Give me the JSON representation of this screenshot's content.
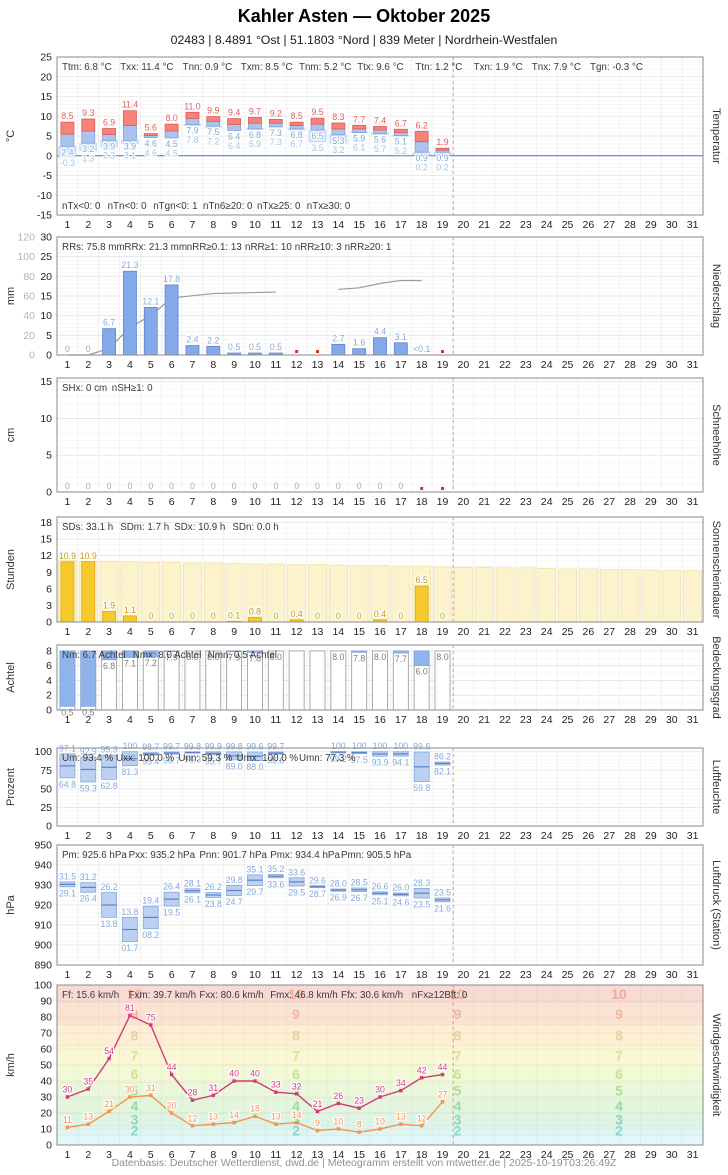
{
  "header": {
    "title": "Kahler Asten  —  Oktober 2025",
    "subtitle": "02483  |  8.4891 °Ost  |  51.1803 °Nord  |  839 Meter  |  Nordrhein-Westfalen"
  },
  "footer": {
    "credit": "Datenbasis: Deutscher Wetterdienst, dwd.de | Meteogramm erstellt von mtwetter.de | 2025-10-19T03:26:49Z"
  },
  "day_labels": [
    "1",
    "2",
    "3",
    "4",
    "5",
    "6",
    "7",
    "8",
    "9",
    "10",
    "11",
    "12",
    "13",
    "14",
    "15",
    "16",
    "17",
    "18",
    "19",
    "20",
    "21",
    "22",
    "23",
    "24",
    "25",
    "26",
    "27",
    "28",
    "29",
    "30",
    "31"
  ],
  "now_line": {
    "after_day": 19
  },
  "colors": {
    "temp_max_bar": "#f5837c",
    "temp_max_border": "#e25a55",
    "temp_label_max": "#e25a55",
    "temp_min_bar": "#a9c4ee",
    "temp_min_border": "#7fa3dc",
    "temp_label_min": "#7da7d8",
    "temp_ground_bar": "#d4e2f6",
    "temp_ground_border": "#c2d6f2",
    "temp_label_ground": "#a4c3e2",
    "zero_line": "#4a72c8",
    "precip_bar": "#84a9ea",
    "precip_border": "#5f83cf",
    "precip_label": "#84a9da",
    "cumulative_line": "#9a9a9a",
    "missing_dot": "#e03020",
    "snow_label": "#aaaaaa",
    "sun_bar": "#f6c92f",
    "sun_border": "#d9a615",
    "sun_label": "#c19718",
    "sun_bg_bar": "#fcf3cd",
    "sun_bg_border": "#f0e2a6",
    "cloud_cap": "#8fb4ec",
    "cloud_cap_border": "#7fa3dc",
    "cloud_bar_border": "#a0a0a0",
    "cloud_label": "#7c7c7c",
    "range_bar": "#bcd0f1",
    "range_border": "#86a8e0",
    "range_mean": "#5b82c8",
    "range_label": "#84a8da",
    "wind_gust": "#d23b7a",
    "wind_mean": "#f5924e",
    "now_line": "#e89090",
    "grid_major": "#e3e3e3",
    "grid_minor": "#f4f4f4",
    "grid_day": "#ececec",
    "panel_border": "#8a8a8a"
  },
  "chart_data": [
    {
      "key": "temperature",
      "type": "bar",
      "unit_left": "°C",
      "label_right": "Temperatur",
      "ylim": [
        -15,
        25
      ],
      "yticks": [
        25,
        20,
        15,
        10,
        5,
        0,
        -5,
        -10,
        -15
      ],
      "stats_top": [
        "Ttm: 6.8 °C",
        "Txx: 11.4 °C",
        "Tnn: 0.9 °C",
        "Txm: 8.5 °C",
        "Tnm: 5.2 °C",
        "Ttx: 9.6 °C",
        "Ttn: 1.2 °C",
        "Txn: 1.9 °C",
        "Tnx: 7.9 °C",
        "Tgn: -0.3 °C"
      ],
      "stats_bottom": [
        "nTx<0: 0",
        "nTn<0: 0",
        "nTgn<0: 1",
        "nTn6≥20: 0",
        "nTx≥25: 0",
        "nTx≥30: 0"
      ],
      "days": [
        {
          "day": 1,
          "tmax": 8.5,
          "tmin": 2.4,
          "tground": -0.3
        },
        {
          "day": 2,
          "tmax": 9.3,
          "tmin": 3.2,
          "tground": 1.3
        },
        {
          "day": 3,
          "tmax": 6.9,
          "tmin": 3.9,
          "tground": 2.3
        },
        {
          "day": 4,
          "tmax": 11.4,
          "tmin": 3.9,
          "tground": 3.1
        },
        {
          "day": 5,
          "tmax": 5.6,
          "tmin": 4.6,
          "tground": 4.6
        },
        {
          "day": 6,
          "tmax": 8.0,
          "tmin": 4.5,
          "tground": 4.5
        },
        {
          "day": 7,
          "tmax": 11.0,
          "tmin": 7.9,
          "tground": 7.8
        },
        {
          "day": 8,
          "tmax": 9.9,
          "tmin": 7.5,
          "tground": 7.2
        },
        {
          "day": 9,
          "tmax": 9.4,
          "tmin": 6.4,
          "tground": 6.4
        },
        {
          "day": 10,
          "tmax": 9.7,
          "tmin": 6.8,
          "tground": 6.9
        },
        {
          "day": 11,
          "tmax": 9.2,
          "tmin": 7.3,
          "tground": 7.3
        },
        {
          "day": 12,
          "tmax": 8.5,
          "tmin": 6.8,
          "tground": 6.7
        },
        {
          "day": 13,
          "tmax": 9.5,
          "tmin": 6.5,
          "tground": 3.5
        },
        {
          "day": 14,
          "tmax": 8.3,
          "tmin": 5.3,
          "tground": 3.2
        },
        {
          "day": 15,
          "tmax": 7.7,
          "tmin": 5.9,
          "tground": 6.1
        },
        {
          "day": 16,
          "tmax": 7.4,
          "tmin": 5.6,
          "tground": 5.7
        },
        {
          "day": 17,
          "tmax": 6.7,
          "tmin": 5.1,
          "tground": 5.2
        },
        {
          "day": 18,
          "tmax": 6.2,
          "tmin": 0.9,
          "tground": 0.2
        },
        {
          "day": 19,
          "tmax": 1.9,
          "tmin": 0.9,
          "tground": 0.2
        }
      ]
    },
    {
      "key": "precipitation",
      "type": "bar",
      "unit_left": "mm",
      "label_right": "Niederschlag",
      "ylim": [
        0,
        30
      ],
      "yticks": [
        30,
        25,
        20,
        15,
        10,
        5,
        0
      ],
      "yticks_cumulative": [
        120,
        100,
        80,
        60,
        40,
        20,
        0
      ],
      "cumulative_max": 120,
      "stats_top": [
        "RRs: 75.8 mm",
        "RRx: 21.3 mm",
        "nRR≥0.1: 13",
        "nRR≥1: 10",
        "nRR≥10: 3",
        "nRR≥20: 1"
      ],
      "values": [
        0,
        0,
        6.7,
        21.3,
        12.1,
        17.8,
        2.4,
        2.2,
        0.5,
        0.5,
        0.5,
        null,
        null,
        2.7,
        1.6,
        4.4,
        3.1,
        0.05,
        null
      ],
      "labels": [
        "0",
        "0",
        "6.7",
        "21.3",
        "12.1",
        "17.8",
        "2.4",
        "2.2",
        "0.5",
        "0.5",
        "0.5",
        null,
        null,
        "2.7",
        "1.6",
        "4.4",
        "3.1",
        "<0.1",
        null
      ],
      "missing_dot_days": [
        12,
        13,
        19
      ],
      "cumulative_segments": [
        [
          [
            1,
            0
          ],
          [
            2,
            0
          ],
          [
            3,
            6.7
          ],
          [
            4,
            28.0
          ],
          [
            5,
            40.1
          ],
          [
            6,
            57.9
          ],
          [
            7,
            60.3
          ],
          [
            8,
            62.5
          ],
          [
            9,
            63.0
          ],
          [
            10,
            63.5
          ],
          [
            11,
            64.0
          ]
        ],
        [
          [
            14,
            66.7
          ],
          [
            15,
            68.3
          ],
          [
            16,
            72.7
          ],
          [
            17,
            75.8
          ],
          [
            18,
            75.8
          ]
        ]
      ]
    },
    {
      "key": "snow",
      "type": "bar",
      "unit_left": "cm",
      "label_right": "Schneehöhe",
      "ylim": [
        0,
        15.5
      ],
      "yticks": [
        15,
        10,
        5,
        0
      ],
      "stats_top": [
        "SHx: 0 cm",
        "nSH≥1: 0"
      ],
      "values": [
        0,
        0,
        0,
        0,
        0,
        0,
        0,
        0,
        0,
        0,
        0,
        0,
        0,
        0,
        0,
        0,
        0,
        null,
        null
      ],
      "missing_dot_days": [
        18,
        19
      ]
    },
    {
      "key": "sunshine",
      "type": "bar",
      "unit_left": "Stunden",
      "label_right": "Sonnenscheindauer",
      "ylim": [
        0,
        19
      ],
      "yticks": [
        18,
        15,
        12,
        9,
        6,
        3,
        0
      ],
      "stats_top": [
        "SDs: 33.1 h",
        "SDm: 1.7 h",
        "SDx: 10.9 h",
        "SDn: 0.0 h"
      ],
      "values": [
        10.9,
        10.9,
        1.9,
        1.1,
        0,
        0,
        0,
        0,
        0.1,
        0.8,
        0,
        0.4,
        0,
        0,
        0,
        0.4,
        0,
        6.5,
        0
      ],
      "labels": [
        "10.9",
        "10.9",
        "1.9",
        "1.1",
        "0",
        "0",
        "0",
        "0",
        "0.1",
        "0.8",
        "0",
        "0.4",
        "0",
        "0",
        "0",
        "0.4",
        "0",
        "6.5",
        "0"
      ],
      "daylight_hours": [
        11.1,
        11.0,
        11.0,
        10.9,
        10.8,
        10.8,
        10.7,
        10.7,
        10.6,
        10.5,
        10.5,
        10.4,
        10.4,
        10.3,
        10.2,
        10.2,
        10.1,
        10.1,
        10.0,
        9.9,
        9.9,
        9.8,
        9.8,
        9.7,
        9.6,
        9.6,
        9.5,
        9.5,
        9.4,
        9.3,
        9.3
      ]
    },
    {
      "key": "cloud",
      "type": "bar",
      "unit_left": "Achtel",
      "label_right": "Bedeckungsgrad",
      "ylim": [
        0,
        8.8
      ],
      "yticks": [
        8,
        6,
        4,
        2,
        0
      ],
      "stats_top": [
        "Nm: 6.7 Achtel",
        "Nmx: 8.0 Achtel",
        "Nmn: 0.5 Achtel"
      ],
      "values": [
        0.5,
        0.5,
        6.8,
        7.1,
        7.2,
        7.9,
        8.0,
        8.0,
        7.9,
        7.8,
        8.0,
        null,
        null,
        8.0,
        7.8,
        8.0,
        7.7,
        6.0,
        8.0
      ]
    },
    {
      "key": "humidity",
      "type": "range-bar",
      "unit_left": "Prozent",
      "label_right": "Luftfeuchte",
      "ylim": [
        0,
        105
      ],
      "yticks": [
        100,
        75,
        50,
        25,
        0
      ],
      "stats_top": [
        "Um: 93.4 %",
        "Uxx: 100.0 %",
        "Unn: 59.3 %",
        "Umx: 100.0 %",
        "Umn: 77.3 %"
      ],
      "days": [
        {
          "max": 97.1,
          "min": 64.8
        },
        {
          "max": 92.9,
          "min": 59.3
        },
        {
          "max": 95.3,
          "min": 62.8
        },
        {
          "max": 100,
          "min": 81.3
        },
        {
          "max": 98.7,
          "min": 95.4
        },
        {
          "max": 99.7,
          "min": 96.7
        },
        {
          "max": 99.8,
          "min": 98.3
        },
        {
          "max": 99.9,
          "min": 95.7
        },
        {
          "max": 99.8,
          "min": 89.0
        },
        {
          "max": 99.6,
          "min": 88.0
        },
        {
          "max": 99.7,
          "min": 96.6
        },
        null,
        null,
        {
          "max": 100,
          "min": 99.2
        },
        {
          "max": 100,
          "min": 97.5
        },
        {
          "max": 100,
          "min": 93.9
        },
        {
          "max": 100,
          "min": 94.1
        },
        {
          "max": 99.6,
          "min": 59.8
        },
        {
          "max": 86.2,
          "min": 82.1
        }
      ]
    },
    {
      "key": "pressure",
      "type": "range-bar",
      "unit_left": "hPa",
      "label_right": "Luftdruck (Station)",
      "ylim": [
        890,
        950
      ],
      "yticks": [
        950,
        940,
        930,
        920,
        910,
        900,
        890
      ],
      "stats_top": [
        "Pm: 925.6 hPa",
        "Pxx: 935.2 hPa",
        "Pnn: 901.7 hPa",
        "Pmx: 934.4 hPa",
        "Pmn: 905.5 hPa"
      ],
      "days": [
        {
          "max": 931.5,
          "min": 929.1
        },
        {
          "max": 931.2,
          "min": 926.4
        },
        {
          "max": 926.2,
          "min": 913.8
        },
        {
          "max": 913.8,
          "min": 901.7
        },
        {
          "max": 919.4,
          "min": 908.2
        },
        {
          "max": 926.4,
          "min": 919.5
        },
        {
          "max": 928.1,
          "min": 926.1
        },
        {
          "max": 926.2,
          "min": 923.8
        },
        {
          "max": 929.8,
          "min": 924.7
        },
        {
          "max": 935.1,
          "min": 929.7
        },
        {
          "max": 935.2,
          "min": 933.6
        },
        {
          "max": 933.6,
          "min": 929.5
        },
        {
          "max": 929.6,
          "min": 928.7
        },
        {
          "max": 928.0,
          "min": 926.9
        },
        {
          "max": 928.5,
          "min": 926.7
        },
        {
          "max": 926.6,
          "min": 925.1
        },
        {
          "max": 926.0,
          "min": 924.6
        },
        {
          "max": 928.3,
          "min": 923.5
        },
        {
          "max": 923.5,
          "min": 921.6
        }
      ]
    },
    {
      "key": "wind",
      "type": "line",
      "unit_left": "km/h",
      "label_right": "Windgeschwindigkeit",
      "ylim": [
        0,
        100
      ],
      "yticks": [
        100,
        90,
        80,
        70,
        60,
        50,
        40,
        30,
        20,
        10,
        0
      ],
      "stats_top": [
        "Ff: 15.6 km/h",
        "Fxm: 39.7 km/h",
        "Fxx: 80.6 km/h",
        "Fmx: 46.8 km/h",
        "Ffx: 30.6 km/h",
        "nFx≥12Bft: 0"
      ],
      "series": [
        {
          "name": "gusts",
          "values": [
            30,
            35,
            54,
            81,
            75,
            44,
            28,
            31,
            40,
            40,
            33,
            32,
            21,
            26,
            23,
            30,
            34,
            42,
            44
          ]
        },
        {
          "name": "mean",
          "values": [
            11,
            13,
            21,
            30,
            31,
            20,
            12,
            13,
            14,
            18,
            13,
            14,
            9,
            10,
            8,
            10,
            13,
            12,
            27
          ]
        }
      ],
      "beaufort_bands": [
        {
          "bft": null,
          "from": 0,
          "to": 6,
          "fill": "#e3f6f9",
          "num": null
        },
        {
          "bft": "2",
          "from": 6,
          "to": 12,
          "fill": "#def5f0",
          "num": "#7ecfd0"
        },
        {
          "bft": "3",
          "from": 12,
          "to": 20,
          "fill": "#def5e6",
          "num": "#82d0b0"
        },
        {
          "bft": "4",
          "from": 20,
          "to": 29,
          "fill": "#e3f6dd",
          "num": "#8fd49a"
        },
        {
          "bft": "5",
          "from": 29,
          "to": 39,
          "fill": "#eaf7da",
          "num": "#a6da8c"
        },
        {
          "bft": "6",
          "from": 39,
          "to": 50,
          "fill": "#f2f9d7",
          "num": "#c2e084"
        },
        {
          "bft": "7",
          "from": 50,
          "to": 62,
          "fill": "#faf7d4",
          "num": "#e0dc84"
        },
        {
          "bft": "8",
          "from": 62,
          "to": 75,
          "fill": "#fcefd4",
          "num": "#efc898"
        },
        {
          "bft": "9",
          "from": 75,
          "to": 89,
          "fill": "#fae3d2",
          "num": "#f2b098"
        },
        {
          "bft": "10",
          "from": 89,
          "to": 100,
          "fill": "#f8dbd2",
          "num": "#f2a198"
        }
      ]
    }
  ]
}
